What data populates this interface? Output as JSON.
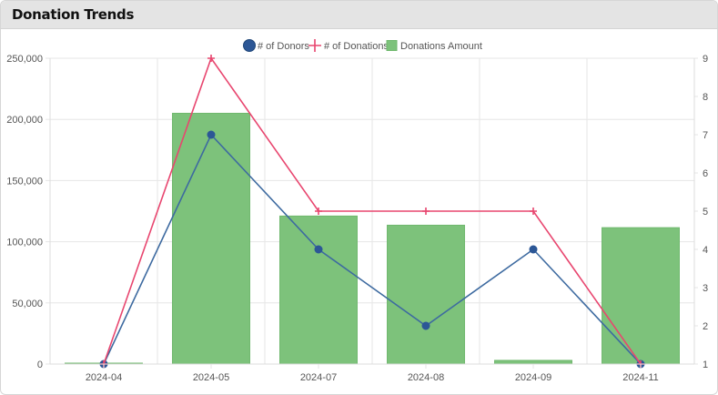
{
  "header": {
    "title": "Donation Trends"
  },
  "colors": {
    "donors": "#3d6aa0",
    "donors_point": "#2c5796",
    "donations": "#e8466f",
    "amount_fill": "#7dc27b",
    "amount_stroke": "#6fb86d",
    "grid": "#e6e6e6"
  },
  "chart_data": {
    "type": "bar",
    "categories": [
      "2024-04",
      "2024-05",
      "2024-07",
      "2024-08",
      "2024-09",
      "2024-11"
    ],
    "legend": {
      "position": "top-center",
      "entries": [
        "# of Donors",
        "# of Donations",
        "Donations Amount"
      ]
    },
    "grid": true,
    "y_left": {
      "min": 0,
      "max": 250000,
      "ticks": [
        "0",
        "50,000",
        "100,000",
        "150,000",
        "200,000",
        "250,000"
      ]
    },
    "y_right": {
      "min": 1,
      "max": 9,
      "ticks": [
        "1",
        "2",
        "3",
        "4",
        "5",
        "6",
        "7",
        "8",
        "9"
      ]
    },
    "series": [
      {
        "name": "# of Donors",
        "kind": "line",
        "axis": "right",
        "values": [
          1,
          7,
          4,
          2,
          4,
          1
        ]
      },
      {
        "name": "# of Donations",
        "kind": "line",
        "axis": "right",
        "values": [
          1,
          9,
          5,
          5,
          5,
          1
        ]
      },
      {
        "name": "Donations Amount",
        "kind": "bar",
        "axis": "left",
        "values": [
          300,
          205000,
          121000,
          113500,
          3000,
          111500
        ]
      }
    ]
  }
}
